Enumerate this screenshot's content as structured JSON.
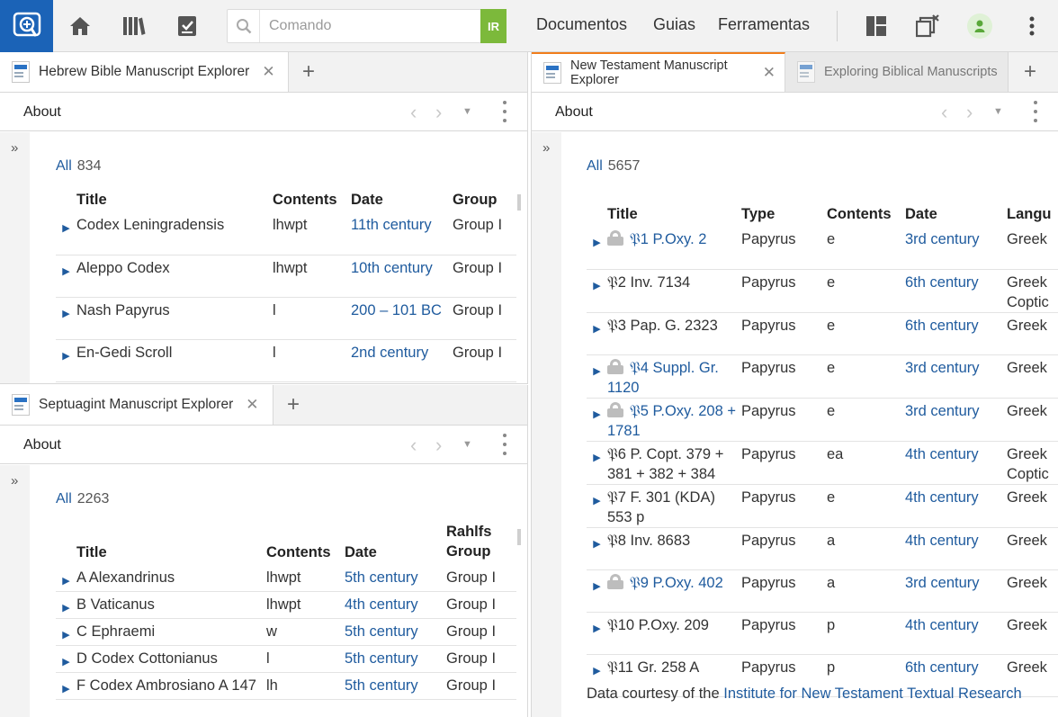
{
  "topbar": {
    "search_placeholder": "Comando",
    "go_label": "IR",
    "menu": [
      "Documentos",
      "Guias",
      "Ferramentas"
    ]
  },
  "hebrew": {
    "tab_title": "Hebrew Bible Manuscript Explorer",
    "about": "About",
    "all_label": "All",
    "count": "834",
    "columns": [
      "Title",
      "Contents",
      "Date",
      "Group"
    ],
    "rows": [
      {
        "title": "Codex Leningradensis",
        "contents": "lhwpt",
        "date": "11th century",
        "group": "Group I"
      },
      {
        "title": "Aleppo Codex",
        "contents": "lhwpt",
        "date": "10th century",
        "group": "Group I"
      },
      {
        "title": "Nash Papyrus",
        "contents": "l",
        "date": "200 – 101 BC",
        "group": "Group I"
      },
      {
        "title": "En-Gedi Scroll",
        "contents": "l",
        "date": "2nd century",
        "group": "Group I"
      }
    ]
  },
  "septuagint": {
    "tab_title": "Septuagint Manuscript Explorer",
    "about": "About",
    "all_label": "All",
    "count": "2263",
    "columns": [
      "Title",
      "Contents",
      "Date",
      "Rahlfs Group"
    ],
    "rows": [
      {
        "title": "A Alexandrinus",
        "contents": "lhwpt",
        "date": "5th century",
        "group": "Group I"
      },
      {
        "title": "B Vaticanus",
        "contents": "lhwpt",
        "date": "4th century",
        "group": "Group I"
      },
      {
        "title": "C Ephraemi",
        "contents": "w",
        "date": "5th century",
        "group": "Group I"
      },
      {
        "title": "D Codex Cottonianus",
        "contents": "l",
        "date": "5th century",
        "group": "Group I"
      },
      {
        "title": "F Codex Ambrosiano A 147",
        "contents": "lh",
        "date": "5th century",
        "group": "Group I"
      }
    ]
  },
  "nt": {
    "tab_title": "New Testament Manuscript Explorer",
    "tab2_title": "Exploring Biblical Manuscripts",
    "about": "About",
    "all_label": "All",
    "count": "5657",
    "columns": [
      "Title",
      "Type",
      "Contents",
      "Date",
      "Langu"
    ],
    "rows": [
      {
        "locked": true,
        "title": "𝔓1 P.Oxy. 2",
        "type": "Papyrus",
        "contents": "e",
        "date": "3rd century",
        "lang": "Greek"
      },
      {
        "locked": false,
        "title": "𝔓2 Inv. 7134",
        "type": "Papyrus",
        "contents": "e",
        "date": "6th century",
        "lang": "Greek Coptic"
      },
      {
        "locked": false,
        "title": "𝔓3 Pap. G. 2323",
        "type": "Papyrus",
        "contents": "e",
        "date": "6th century",
        "lang": "Greek"
      },
      {
        "locked": true,
        "title": "𝔓4 Suppl. Gr. 1120",
        "type": "Papyrus",
        "contents": "e",
        "date": "3rd century",
        "lang": "Greek"
      },
      {
        "locked": true,
        "title": "𝔓5 P.Oxy. 208 + 1781",
        "type": "Papyrus",
        "contents": "e",
        "date": "3rd century",
        "lang": "Greek"
      },
      {
        "locked": false,
        "title": "𝔓6 P. Copt. 379 + 381 + 382 + 384",
        "type": "Papyrus",
        "contents": "ea",
        "date": "4th century",
        "lang": "Greek Coptic"
      },
      {
        "locked": false,
        "title": "𝔓7 F. 301 (KDA) 553 p",
        "type": "Papyrus",
        "contents": "e",
        "date": "4th century",
        "lang": "Greek"
      },
      {
        "locked": false,
        "title": "𝔓8 Inv. 8683",
        "type": "Papyrus",
        "contents": "a",
        "date": "4th century",
        "lang": "Greek"
      },
      {
        "locked": true,
        "title": "𝔓9 P.Oxy. 402",
        "type": "Papyrus",
        "contents": "a",
        "date": "3rd century",
        "lang": "Greek"
      },
      {
        "locked": false,
        "title": "𝔓10 P.Oxy. 209",
        "type": "Papyrus",
        "contents": "p",
        "date": "4th century",
        "lang": "Greek"
      },
      {
        "locked": false,
        "title": "𝔓11 Gr. 258 A",
        "type": "Papyrus",
        "contents": "p",
        "date": "6th century",
        "lang": "Greek"
      }
    ],
    "footer_prefix": "Data courtesy of the",
    "footer_link": "Institute for New Testament Textual Research"
  },
  "icons": [
    "app-logo-icon",
    "home-icon",
    "library-icon",
    "checklist-icon",
    "search-icon",
    "layout-icon",
    "close-panels-icon",
    "user-status-icon",
    "more-vert-icon"
  ],
  "colors": {
    "accent": "#1b63b7",
    "go_button": "#7cb93b",
    "link": "#1f5b9e",
    "active_tab": "#f07d1b"
  }
}
